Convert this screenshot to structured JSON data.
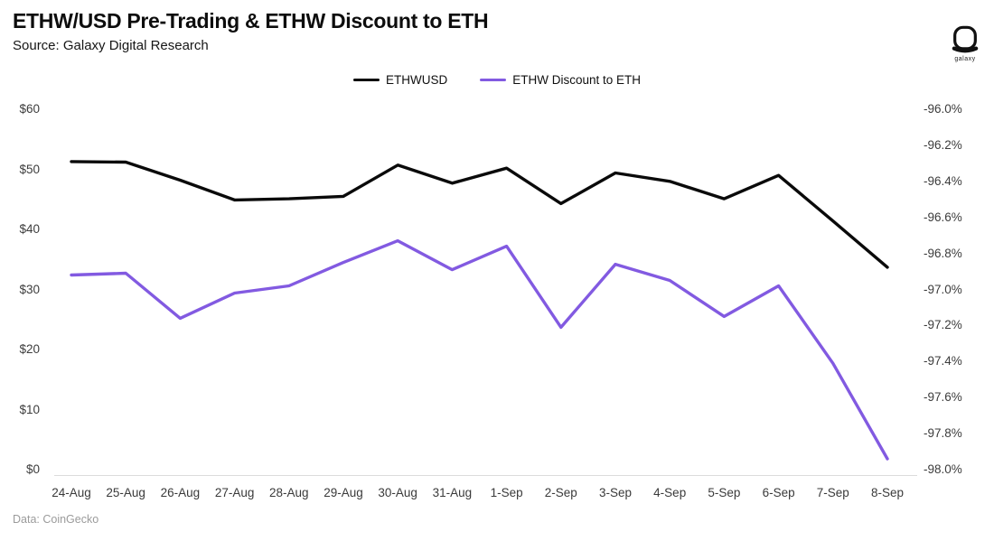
{
  "header": {
    "title": "ETHW/USD Pre-Trading & ETHW Discount to ETH",
    "subtitle": "Source: Galaxy Digital Research"
  },
  "logo": {
    "label": "galaxy"
  },
  "legend": [
    {
      "label": "ETHWUSD",
      "color": "#0a0a0a"
    },
    {
      "label": "ETHW Discount to ETH",
      "color": "#825ae1"
    }
  ],
  "footer": {
    "text": "Data: CoinGecko"
  },
  "colors": {
    "ethwusd_line": "#0a0a0a",
    "discount_line": "#825ae1",
    "axis_line": "#dcdcdc",
    "axis_text": "#3c3c3c"
  },
  "chart_data": {
    "type": "line",
    "title": "ETHW/USD Pre-Trading & ETHW Discount to ETH",
    "categories": [
      "24-Aug",
      "25-Aug",
      "26-Aug",
      "27-Aug",
      "28-Aug",
      "29-Aug",
      "30-Aug",
      "31-Aug",
      "1-Sep",
      "2-Sep",
      "3-Sep",
      "4-Sep",
      "5-Sep",
      "6-Sep",
      "7-Sep",
      "8-Sep"
    ],
    "series": [
      {
        "name": "ETHWUSD",
        "axis": "left",
        "color": "#0a0a0a",
        "values": [
          51.3,
          51.2,
          48.2,
          44.9,
          45.1,
          45.5,
          50.7,
          47.7,
          50.2,
          44.3,
          49.4,
          48.0,
          45.1,
          49.0,
          41.4,
          33.7
        ]
      },
      {
        "name": "ETHW Discount to ETH",
        "axis": "right",
        "color": "#825ae1",
        "values": [
          -96.92,
          -96.91,
          -97.16,
          -97.02,
          -96.98,
          -96.85,
          -96.73,
          -96.89,
          -96.76,
          -97.21,
          -96.86,
          -96.95,
          -97.15,
          -96.98,
          -97.41,
          -97.94
        ]
      }
    ],
    "left_axis": {
      "min": 0,
      "max": 60,
      "step": 10,
      "tick_labels": [
        "$60",
        "$50",
        "$40",
        "$30",
        "$20",
        "$10",
        "$0"
      ]
    },
    "right_axis": {
      "min": -98.0,
      "max": -96.0,
      "step": 0.2,
      "tick_labels": [
        "-96.0%",
        "-96.2%",
        "-96.4%",
        "-96.6%",
        "-96.8%",
        "-97.0%",
        "-97.2%",
        "-97.4%",
        "-97.6%",
        "-97.8%",
        "-98.0%"
      ]
    },
    "grid": false,
    "legend_position": "top"
  }
}
